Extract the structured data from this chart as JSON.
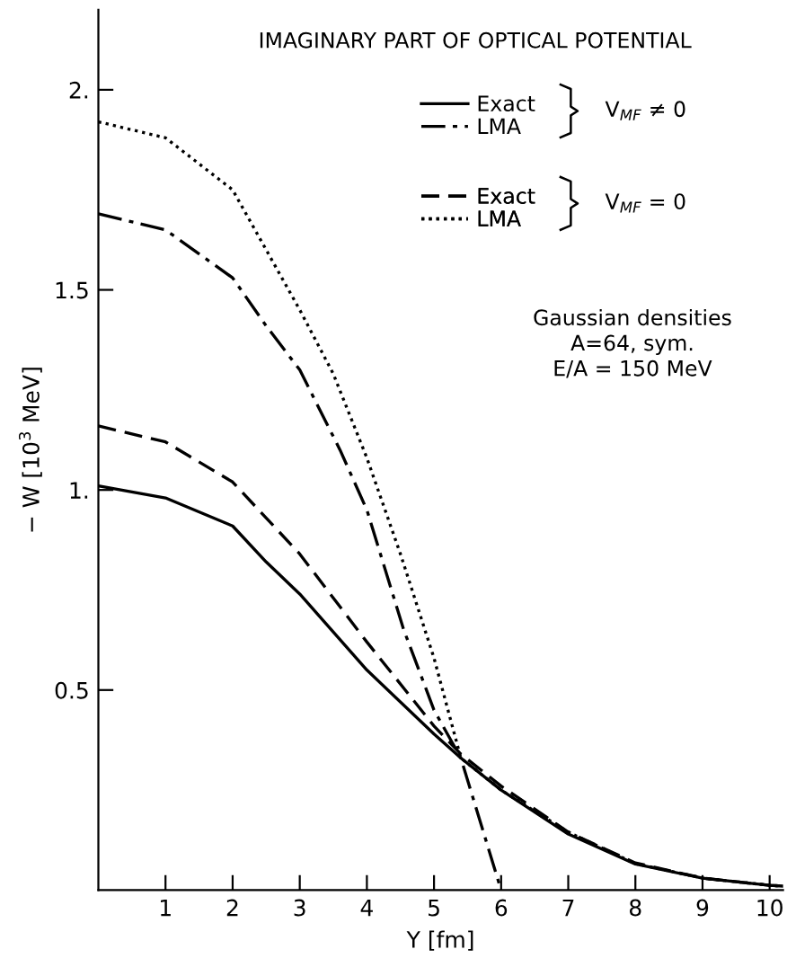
{
  "chart_data": {
    "type": "line",
    "title": "IMAGINARY PART OF OPTICAL POTENTIAL",
    "xlabel": "Y [fm]",
    "ylabel": "− W [10$^{3}$ MeV]",
    "xlim": [
      0,
      10.2
    ],
    "ylim": [
      0,
      2.2
    ],
    "xticks": [
      1,
      2,
      3,
      4,
      5,
      6,
      7,
      8,
      9,
      10
    ],
    "yticks": [
      0.5,
      {
        "value": 1,
        "label": "1."
      },
      1.5,
      {
        "value": 2,
        "label": "2."
      }
    ],
    "grid": false,
    "legend": "top right",
    "marker": "none",
    "series": [
      {
        "name": "Exact",
        "color": "#000000",
        "line_style": "solid",
        "x": [
          0,
          1,
          2,
          2.5,
          3,
          4,
          5,
          5.4,
          6,
          7,
          8,
          9,
          10,
          10.2
        ],
        "values": [
          1.01,
          0.98,
          0.91,
          0.82,
          0.74,
          0.55,
          0.39,
          0.33,
          0.25,
          0.14,
          0.065,
          0.03,
          0.012,
          0.01
        ]
      },
      {
        "name": "LMA",
        "color": "#000000",
        "line_style": "dashdot",
        "x": [
          0,
          1,
          2,
          2.5,
          3,
          3.6,
          4,
          4.55,
          5,
          5.4,
          6
        ],
        "values": [
          1.69,
          1.65,
          1.53,
          1.41,
          1.3,
          1.1,
          0.95,
          0.65,
          0.45,
          0.33,
          0
        ]
      },
      {
        "name": "Exact",
        "color": "#000000",
        "line_style": "dashed",
        "x": [
          0,
          1,
          2,
          2.5,
          3,
          4,
          5,
          5.4,
          6,
          7,
          8,
          9,
          10,
          10.2
        ],
        "values": [
          1.16,
          1.12,
          1.02,
          0.93,
          0.84,
          0.62,
          0.41,
          0.34,
          0.26,
          0.145,
          0.068,
          0.03,
          0.012,
          0.01
        ]
      },
      {
        "name": "LMA",
        "color": "#000000",
        "line_style": "dotted",
        "x": [
          0,
          1,
          2,
          2.5,
          3,
          3.5,
          4,
          4.5,
          5,
          5.4,
          5.7,
          6,
          7,
          8,
          9,
          10,
          10.2
        ],
        "values": [
          1.92,
          1.88,
          1.75,
          1.6,
          1.45,
          1.29,
          1.08,
          0.84,
          0.58,
          0.33,
          0.29,
          0.25,
          0.145,
          0.066,
          0.03,
          0.012,
          0.01
        ]
      }
    ],
    "annotations": [
      "V$_{MF}$ ≠ 0",
      "V$_{MF}$ = 0",
      "Gaussian densities\nA=64, sym.\nE/A = 150 MeV"
    ]
  }
}
